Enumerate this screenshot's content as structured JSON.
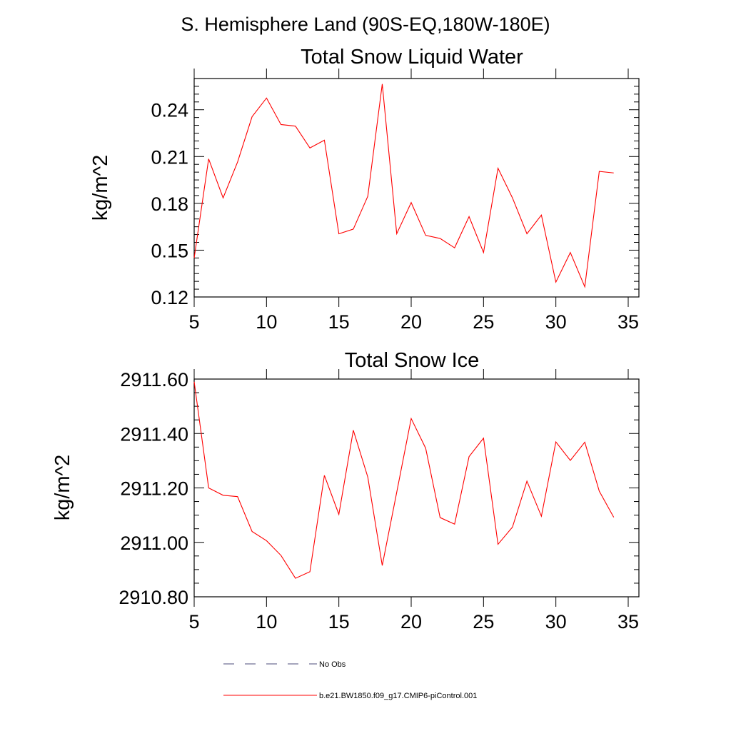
{
  "figure_title": "S. Hemisphere Land (90S-EQ,180W-180E)",
  "chart_data": [
    {
      "type": "line",
      "title": "Total Snow Liquid Water",
      "xlabel": "",
      "ylabel": "kg/m^2",
      "xlim": [
        5,
        35
      ],
      "ylim": [
        0.12,
        0.26
      ],
      "xticks": [
        5,
        10,
        15,
        20,
        25,
        30,
        35
      ],
      "yticks": [
        0.12,
        0.15,
        0.18,
        0.21,
        0.24
      ],
      "ytick_labels": [
        "0.12",
        "0.15",
        "0.18",
        "0.21",
        "0.24"
      ],
      "series": [
        {
          "name": "b.e21.BW1850.f09_g17.CMIP6-piControl.001",
          "color": "#ff0000",
          "x": [
            5,
            6,
            7,
            8,
            9,
            10,
            11,
            12,
            13,
            14,
            15,
            16,
            17,
            18,
            19,
            20,
            21,
            22,
            23,
            24,
            25,
            26,
            27,
            28,
            29,
            30,
            31,
            32,
            33,
            34
          ],
          "y": [
            0.145,
            0.2085,
            0.1835,
            0.2065,
            0.2355,
            0.2475,
            0.2305,
            0.2295,
            0.2155,
            0.2205,
            0.1605,
            0.1635,
            0.1845,
            0.2565,
            0.1605,
            0.1805,
            0.1595,
            0.1575,
            0.1515,
            0.1715,
            0.1485,
            0.2025,
            0.1835,
            0.1605,
            0.1725,
            0.1295,
            0.1485,
            0.1265,
            0.2005,
            0.1995
          ]
        }
      ]
    },
    {
      "type": "line",
      "title": "Total Snow Ice",
      "xlabel": "",
      "ylabel": "kg/m^2",
      "xlim": [
        5,
        35
      ],
      "ylim": [
        2910.8,
        2911.6
      ],
      "xticks": [
        5,
        10,
        15,
        20,
        25,
        30,
        35
      ],
      "yticks": [
        2910.8,
        2911.0,
        2911.2,
        2911.4,
        2911.6
      ],
      "ytick_labels": [
        "2910.80",
        "2911.00",
        "2911.20",
        "2911.40",
        "2911.60"
      ],
      "series": [
        {
          "name": "b.e21.BW1850.f09_g17.CMIP6-piControl.001",
          "color": "#ff0000",
          "x": [
            5,
            6,
            7,
            8,
            9,
            10,
            11,
            12,
            13,
            14,
            15,
            16,
            17,
            18,
            19,
            20,
            21,
            22,
            23,
            24,
            25,
            26,
            27,
            28,
            29,
            30,
            31,
            32,
            33,
            34
          ],
          "y": [
            2911.59,
            2911.2,
            2911.173,
            2911.168,
            2911.04,
            2911.006,
            2910.952,
            2910.868,
            2910.892,
            2911.246,
            2911.103,
            2911.412,
            2911.24,
            2910.915,
            2911.184,
            2911.455,
            2911.346,
            2911.091,
            2911.067,
            2911.315,
            2911.383,
            2910.993,
            2911.056,
            2911.225,
            2911.096,
            2911.369,
            2911.301,
            2911.368,
            2911.188,
            2911.092
          ]
        }
      ]
    }
  ],
  "legend": [
    {
      "label": "No Obs",
      "style": "dashed",
      "color": "#4b4b7a"
    },
    {
      "label": "b.e21.BW1850.f09_g17.CMIP6-piControl.001",
      "style": "solid",
      "color": "#ff0000"
    }
  ]
}
